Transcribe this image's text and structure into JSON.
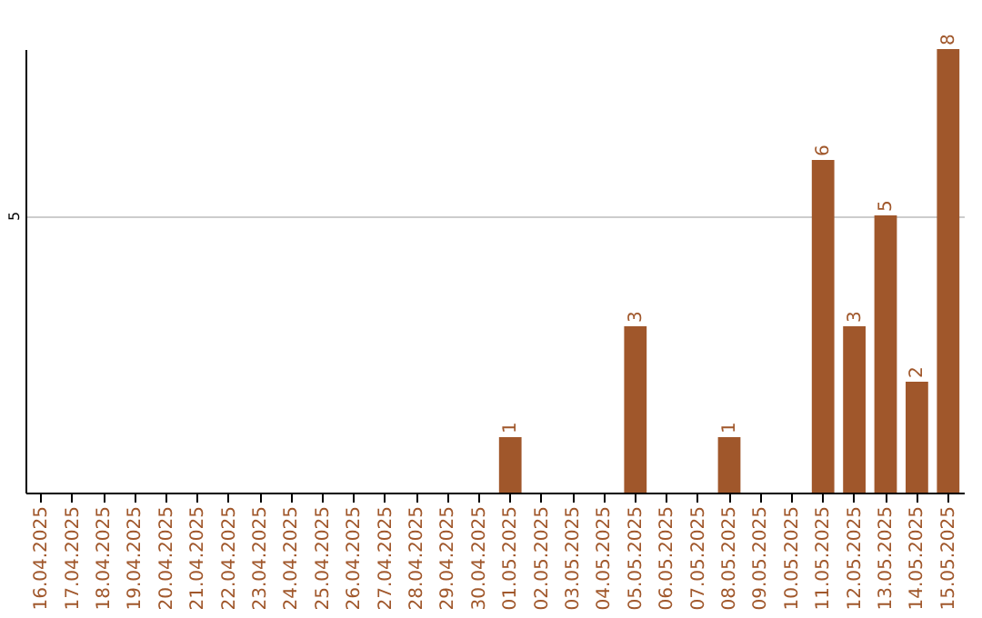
{
  "chart_data": {
    "type": "bar",
    "categories": [
      "16.04.2025",
      "17.04.2025",
      "18.04.2025",
      "19.04.2025",
      "20.04.2025",
      "21.04.2025",
      "22.04.2025",
      "23.04.2025",
      "24.04.2025",
      "25.04.2025",
      "26.04.2025",
      "27.04.2025",
      "28.04.2025",
      "29.04.2025",
      "30.04.2025",
      "01.05.2025",
      "02.05.2025",
      "03.05.2025",
      "04.05.2025",
      "05.05.2025",
      "06.05.2025",
      "07.05.2025",
      "08.05.2025",
      "09.05.2025",
      "10.05.2025",
      "11.05.2025",
      "12.05.2025",
      "13.05.2025",
      "14.05.2025",
      "15.05.2025"
    ],
    "values": [
      null,
      null,
      null,
      null,
      null,
      null,
      null,
      null,
      null,
      null,
      null,
      null,
      null,
      null,
      null,
      1,
      null,
      null,
      null,
      3,
      null,
      null,
      1,
      null,
      null,
      6,
      3,
      5,
      2,
      8
    ],
    "data_labels": true,
    "color": "#a0572b",
    "ylim": [
      0,
      8
    ],
    "yticks": [
      5
    ],
    "grid": "y"
  }
}
